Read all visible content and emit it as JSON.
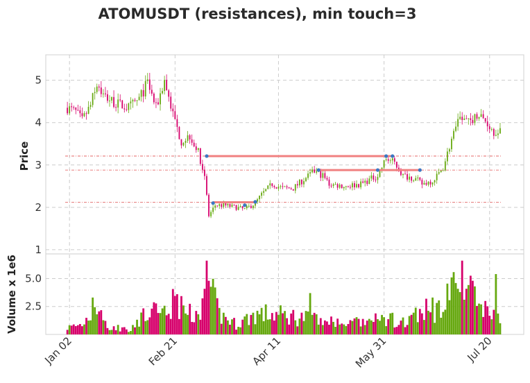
{
  "chart_data": {
    "type": "candlestick",
    "title": "ATOMUSDT (resistances), min touch=3",
    "colors": {
      "up": "#66a80f",
      "down": "#d6006b",
      "resistance_line": "#f08080",
      "level_line": "#e05050",
      "touch_marker": "#3b78c3",
      "grid": "#cccccc"
    },
    "x_tick_labels": [
      "Jan 02",
      "Feb 21",
      "Apr 11",
      "May 31",
      "Jul 20"
    ],
    "x_tick_dates": [
      "2022-01-02",
      "2022-02-21",
      "2022-04-11",
      "2022-05-31",
      "2022-07-20"
    ],
    "date_range": [
      "2021-12-29",
      "2022-07-26"
    ],
    "price_panel": {
      "ylabel": "Price",
      "ylim": [
        0.9,
        5.6
      ],
      "y_ticks": [
        1,
        2,
        3,
        4,
        5
      ]
    },
    "volume_panel": {
      "ylabel": "Volume x 1e6",
      "ylim": [
        0,
        7.2
      ],
      "y_ticks": [
        2.5,
        5.0
      ],
      "y_tick_labels": [
        "2.5",
        "5.0"
      ]
    },
    "resistance_levels": [
      3.21,
      2.88,
      2.12
    ],
    "resistance_segments": [
      {
        "level": 3.21,
        "start": "2022-03-08",
        "end": "2022-06-04"
      },
      {
        "level": 2.88,
        "start": "2022-04-30",
        "end": "2022-06-17"
      },
      {
        "level": 2.12,
        "start": "2022-03-11",
        "end": "2022-03-31"
      }
    ],
    "touch_points": [
      {
        "date": "2022-03-08",
        "price": 3.21
      },
      {
        "date": "2022-06-01",
        "price": 3.21
      },
      {
        "date": "2022-06-04",
        "price": 3.21
      },
      {
        "date": "2022-04-30",
        "price": 2.88
      },
      {
        "date": "2022-05-28",
        "price": 2.88
      },
      {
        "date": "2022-06-17",
        "price": 2.88
      },
      {
        "date": "2022-03-11",
        "price": 2.1
      },
      {
        "date": "2022-03-26",
        "price": 2.05
      },
      {
        "date": "2022-03-31",
        "price": 2.13
      }
    ],
    "close_anchors": [
      [
        "2022-01-01",
        4.35
      ],
      [
        "2022-01-05",
        4.25
      ],
      [
        "2022-01-08",
        4.05
      ],
      [
        "2022-01-12",
        4.4
      ],
      [
        "2022-01-15",
        4.95
      ],
      [
        "2022-01-18",
        4.65
      ],
      [
        "2022-01-24",
        4.45
      ],
      [
        "2022-01-30",
        4.35
      ],
      [
        "2022-02-04",
        4.55
      ],
      [
        "2022-02-08",
        4.95
      ],
      [
        "2022-02-12",
        4.35
      ],
      [
        "2022-02-16",
        5.0
      ],
      [
        "2022-02-20",
        4.2
      ],
      [
        "2022-02-24",
        3.55
      ],
      [
        "2022-02-28",
        3.7
      ],
      [
        "2022-03-04",
        3.3
      ],
      [
        "2022-03-07",
        2.75
      ],
      [
        "2022-03-09",
        1.8
      ],
      [
        "2022-03-12",
        2.05
      ],
      [
        "2022-03-16",
        2.05
      ],
      [
        "2022-03-22",
        2.0
      ],
      [
        "2022-03-26",
        1.95
      ],
      [
        "2022-03-31",
        2.1
      ],
      [
        "2022-04-03",
        2.3
      ],
      [
        "2022-04-08",
        2.55
      ],
      [
        "2022-04-13",
        2.45
      ],
      [
        "2022-04-18",
        2.45
      ],
      [
        "2022-04-24",
        2.7
      ],
      [
        "2022-04-28",
        2.85
      ],
      [
        "2022-05-02",
        2.75
      ],
      [
        "2022-05-05",
        2.55
      ],
      [
        "2022-05-12",
        2.5
      ],
      [
        "2022-05-20",
        2.55
      ],
      [
        "2022-05-28",
        2.75
      ],
      [
        "2022-06-01",
        3.15
      ],
      [
        "2022-06-05",
        3.05
      ],
      [
        "2022-06-09",
        2.75
      ],
      [
        "2022-06-14",
        2.7
      ],
      [
        "2022-06-18",
        2.55
      ],
      [
        "2022-06-24",
        2.65
      ],
      [
        "2022-06-28",
        2.95
      ],
      [
        "2022-07-02",
        3.6
      ],
      [
        "2022-07-06",
        4.1
      ],
      [
        "2022-07-10",
        4.0
      ],
      [
        "2022-07-14",
        4.2
      ],
      [
        "2022-07-18",
        4.05
      ],
      [
        "2022-07-22",
        3.8
      ],
      [
        "2022-07-25",
        3.85
      ]
    ],
    "volume_anchors": [
      [
        "2022-01-01",
        0.6
      ],
      [
        "2022-01-08",
        0.9
      ],
      [
        "2022-01-14",
        2.4
      ],
      [
        "2022-01-20",
        0.7
      ],
      [
        "2022-01-30",
        0.5
      ],
      [
        "2022-02-08",
        1.8
      ],
      [
        "2022-02-16",
        2.0
      ],
      [
        "2022-02-20",
        2.8
      ],
      [
        "2022-02-28",
        1.8
      ],
      [
        "2022-03-06",
        2.5
      ],
      [
        "2022-03-09",
        4.2
      ],
      [
        "2022-03-14",
        1.8
      ],
      [
        "2022-03-22",
        0.9
      ],
      [
        "2022-03-31",
        1.8
      ],
      [
        "2022-04-08",
        1.8
      ],
      [
        "2022-04-18",
        1.6
      ],
      [
        "2022-04-28",
        1.4
      ],
      [
        "2022-05-08",
        1.0
      ],
      [
        "2022-05-20",
        1.0
      ],
      [
        "2022-06-01",
        1.4
      ],
      [
        "2022-06-10",
        1.0
      ],
      [
        "2022-06-18",
        2.0
      ],
      [
        "2022-06-24",
        2.2
      ],
      [
        "2022-07-02",
        3.6
      ],
      [
        "2022-07-08",
        4.0
      ],
      [
        "2022-07-14",
        3.2
      ],
      [
        "2022-07-20",
        2.2
      ],
      [
        "2022-07-25",
        1.4
      ]
    ],
    "volume_spikes": [
      [
        "2022-01-13",
        3.3
      ],
      [
        "2022-02-22",
        3.6
      ],
      [
        "2022-03-08",
        6.6
      ],
      [
        "2022-03-09",
        4.8
      ],
      [
        "2022-04-26",
        3.7
      ],
      [
        "2022-06-23",
        3.3
      ],
      [
        "2022-07-04",
        4.6
      ],
      [
        "2022-07-07",
        6.6
      ],
      [
        "2022-07-12",
        4.8
      ],
      [
        "2022-07-13",
        4.3
      ],
      [
        "2022-07-23",
        5.4
      ]
    ]
  }
}
